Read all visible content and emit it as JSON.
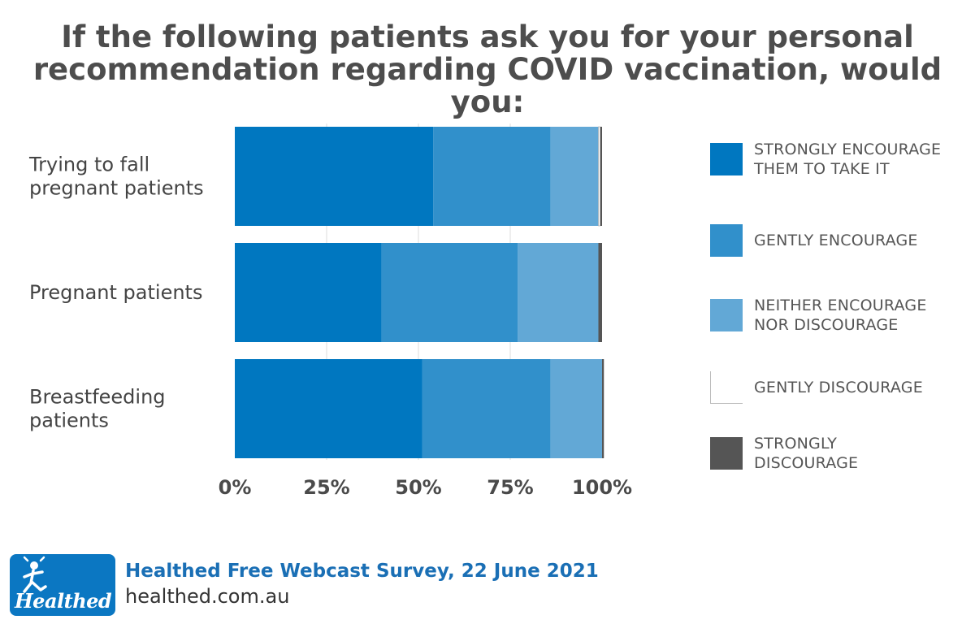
{
  "title_lines": [
    "If the following patients ask you for your personal",
    "recommendation regarding COVID vaccination, would you:"
  ],
  "chart_data": {
    "type": "bar",
    "orientation": "horizontal",
    "stacked": true,
    "categories": [
      [
        "Trying to fall",
        "pregnant patients"
      ],
      [
        "Pregnant patients"
      ],
      [
        "Breastfeeding",
        "patients"
      ]
    ],
    "series": [
      {
        "name": "STRONGLY ENCOURAGE THEM TO TAKE IT",
        "color": "#0077c0",
        "values": [
          54,
          40,
          51
        ]
      },
      {
        "name": "GENTLY ENCOURAGE",
        "color": "#3190cb",
        "values": [
          32,
          37,
          35
        ]
      },
      {
        "name": "NEITHER ENCOURAGE NOR DISCOURAGE",
        "color": "#62a8d6",
        "values": [
          13,
          22,
          14
        ]
      },
      {
        "name": "GENTLY DISCOURAGE",
        "color": "#ffffff",
        "values": [
          0.5,
          0,
          0
        ]
      },
      {
        "name": "STRONGLY DISCOURAGE",
        "color": "#555555",
        "values": [
          0.5,
          1,
          0.5
        ]
      }
    ],
    "xlim": [
      0,
      100
    ],
    "ticks": [
      "0%",
      "25%",
      "50%",
      "75%",
      "100%"
    ],
    "tick_values": [
      0,
      25,
      50,
      75,
      100
    ],
    "grid": true,
    "legend_position": "right"
  },
  "legend": {
    "items": [
      {
        "lines": [
          "STRONGLY ENCOURAGE",
          "THEM TO TAKE IT"
        ],
        "color": "#0077c0"
      },
      {
        "lines": [
          "GENTLY ENCOURAGE"
        ],
        "color": "#3190cb"
      },
      {
        "lines": [
          "NEITHER ENCOURAGE",
          "NOR DISCOURAGE"
        ],
        "color": "#62a8d6"
      },
      {
        "lines": [
          "GENTLY DISCOURAGE"
        ],
        "color": "#ffffff"
      },
      {
        "lines": [
          "STRONGLY",
          "DISCOURAGE"
        ],
        "color": "#555555"
      }
    ]
  },
  "footer": {
    "logo_text": "Healthed",
    "source": "Healthed Free Webcast Survey, 22 June 2021",
    "site": "healthed.com.au"
  }
}
